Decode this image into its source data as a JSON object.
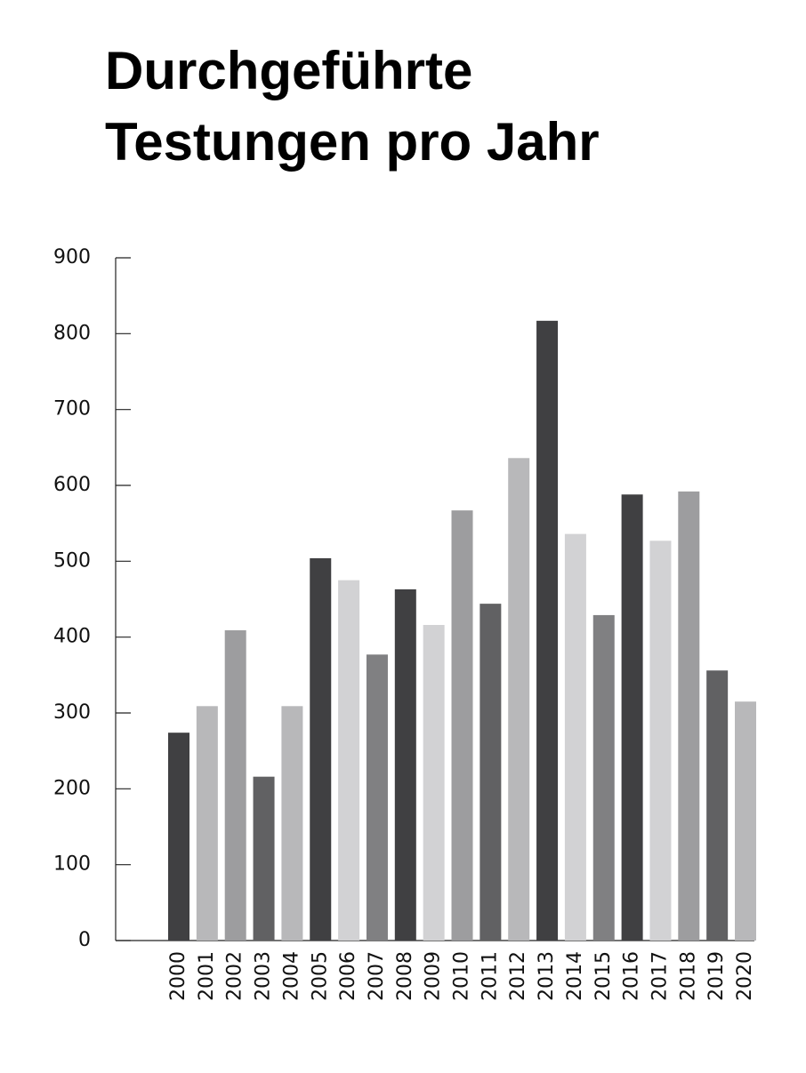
{
  "chart_data": {
    "type": "bar",
    "title": "Durchgeführte Testungen pro Jahr",
    "categories": [
      "2000",
      "2001",
      "2002",
      "2003",
      "2004",
      "2005",
      "2006",
      "2007",
      "2008",
      "2009",
      "2010",
      "2011",
      "2012",
      "2013",
      "2014",
      "2015",
      "2016",
      "2017",
      "2018",
      "2019",
      "2020"
    ],
    "values": [
      274,
      309,
      409,
      216,
      309,
      504,
      475,
      377,
      463,
      416,
      567,
      444,
      636,
      817,
      536,
      429,
      588,
      527,
      592,
      356,
      315
    ],
    "colors": [
      "#404042",
      "#b8b8ba",
      "#9d9d9f",
      "#616163",
      "#b8b8ba",
      "#404042",
      "#d2d2d4",
      "#808082",
      "#404042",
      "#d2d2d4",
      "#9d9d9f",
      "#616163",
      "#b8b8ba",
      "#404042",
      "#d2d2d4",
      "#808082",
      "#404042",
      "#d2d2d4",
      "#9d9d9f",
      "#616163",
      "#b8b8ba"
    ],
    "ylim": [
      0,
      900
    ],
    "yticks": [
      0,
      100,
      200,
      300,
      400,
      500,
      600,
      700,
      800,
      900
    ],
    "grid": false
  }
}
